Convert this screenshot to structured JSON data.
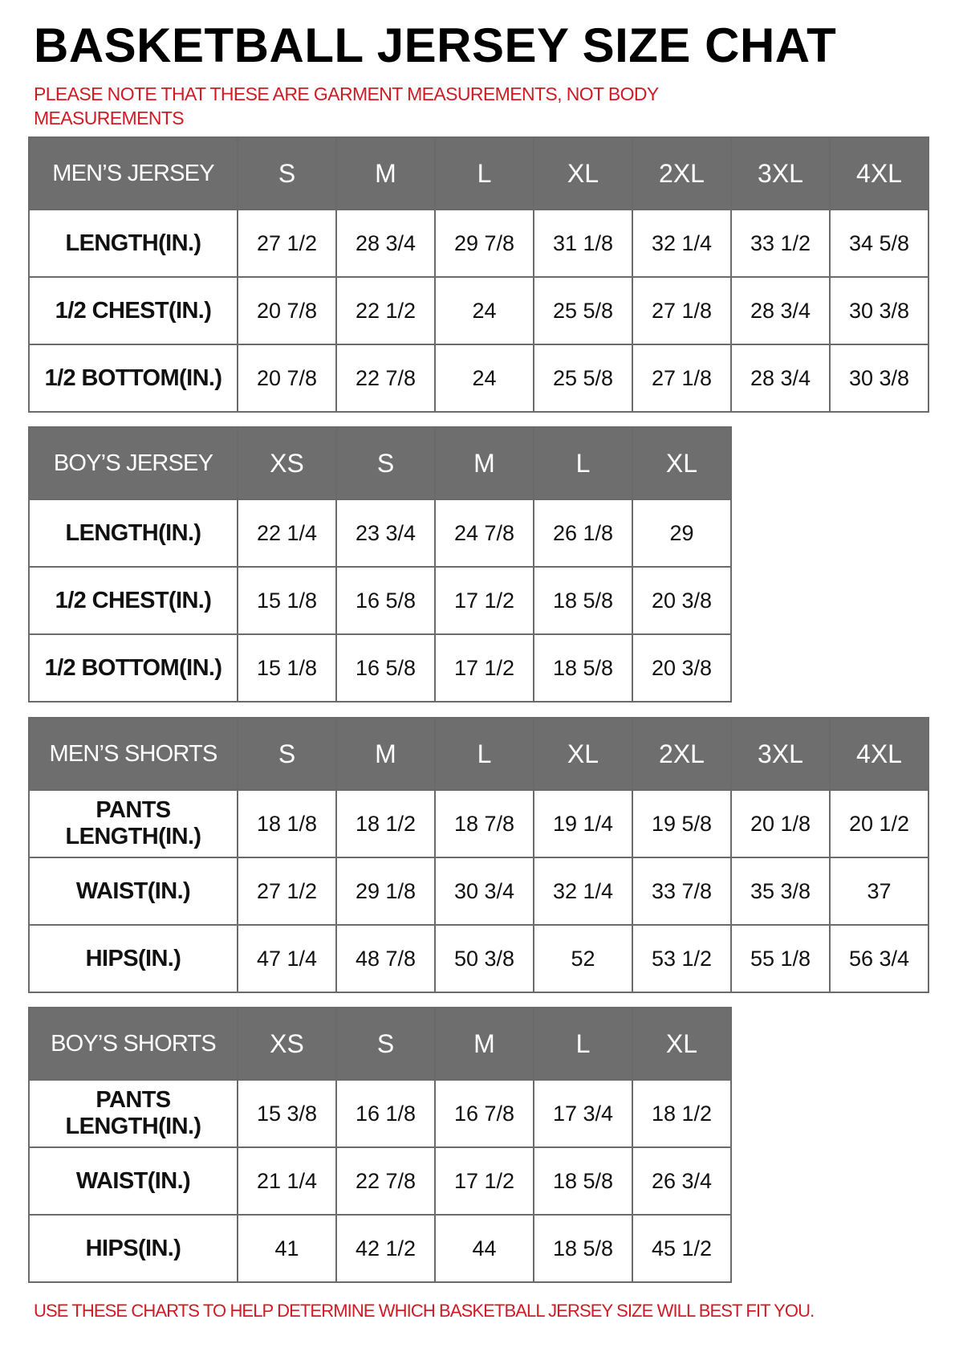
{
  "title": "BASKETBALL JERSEY SIZE CHAT",
  "note": "PLEASE NOTE THAT THESE ARE GARMENT MEASUREMENTS, NOT BODY MEASUREMENTS",
  "footer": "USE THESE CHARTS TO HELP DETERMINE WHICH BASKETBALL JERSEY SIZE WILL BEST FIT YOU.",
  "colors": {
    "header_bg": "#6e6e6e",
    "accent_red": "#d01a24"
  },
  "tables": [
    {
      "heading": "MEN’S JERSEY",
      "sizes": [
        "S",
        "M",
        "L",
        "XL",
        "2XL",
        "3XL",
        "4XL"
      ],
      "rows": [
        {
          "label": "LENGTH(IN.)",
          "values": [
            "27 1/2",
            "28 3/4",
            "29 7/8",
            "31 1/8",
            "32 1/4",
            "33 1/2",
            "34 5/8"
          ]
        },
        {
          "label": "1/2 CHEST(IN.)",
          "values": [
            "20 7/8",
            "22 1/2",
            "24",
            "25 5/8",
            "27 1/8",
            "28 3/4",
            "30 3/8"
          ]
        },
        {
          "label": "1/2 BOTTOM(IN.)",
          "values": [
            "20 7/8",
            "22 7/8",
            "24",
            "25 5/8",
            "27 1/8",
            "28 3/4",
            "30 3/8"
          ]
        }
      ]
    },
    {
      "heading": "BOY’S JERSEY",
      "sizes": [
        "XS",
        "S",
        "M",
        "L",
        "XL"
      ],
      "rows": [
        {
          "label": "LENGTH(IN.)",
          "values": [
            "22 1/4",
            "23 3/4",
            "24 7/8",
            "26 1/8",
            "29"
          ]
        },
        {
          "label": "1/2 CHEST(IN.)",
          "values": [
            "15 1/8",
            "16 5/8",
            "17 1/2",
            "18 5/8",
            "20 3/8"
          ]
        },
        {
          "label": "1/2 BOTTOM(IN.)",
          "values": [
            "15 1/8",
            "16 5/8",
            "17 1/2",
            "18 5/8",
            "20 3/8"
          ]
        }
      ]
    },
    {
      "heading": "MEN’S SHORTS",
      "sizes": [
        "S",
        "M",
        "L",
        "XL",
        "2XL",
        "3XL",
        "4XL"
      ],
      "rows": [
        {
          "label": "PANTS\nLENGTH(IN.)",
          "values": [
            "18 1/8",
            "18 1/2",
            "18 7/8",
            "19 1/4",
            "19 5/8",
            "20 1/8",
            "20 1/2"
          ]
        },
        {
          "label": "WAIST(IN.)",
          "values": [
            "27 1/2",
            "29 1/8",
            "30 3/4",
            "32 1/4",
            "33 7/8",
            "35 3/8",
            "37"
          ]
        },
        {
          "label": "HIPS(IN.)",
          "values": [
            "47 1/4",
            "48 7/8",
            "50 3/8",
            "52",
            "53 1/2",
            "55 1/8",
            "56 3/4"
          ]
        }
      ]
    },
    {
      "heading": "BOY’S SHORTS",
      "sizes": [
        "XS",
        "S",
        "M",
        "L",
        "XL"
      ],
      "rows": [
        {
          "label": "PANTS\nLENGTH(IN.)",
          "values": [
            "15 3/8",
            "16 1/8",
            "16 7/8",
            "17 3/4",
            "18 1/2"
          ]
        },
        {
          "label": "WAIST(IN.)",
          "values": [
            "21 1/4",
            "22 7/8",
            "17 1/2",
            "18 5/8",
            "26 3/4"
          ]
        },
        {
          "label": "HIPS(IN.)",
          "values": [
            "41",
            "42 1/2",
            "44",
            "18 5/8",
            "45 1/2"
          ]
        }
      ]
    }
  ]
}
